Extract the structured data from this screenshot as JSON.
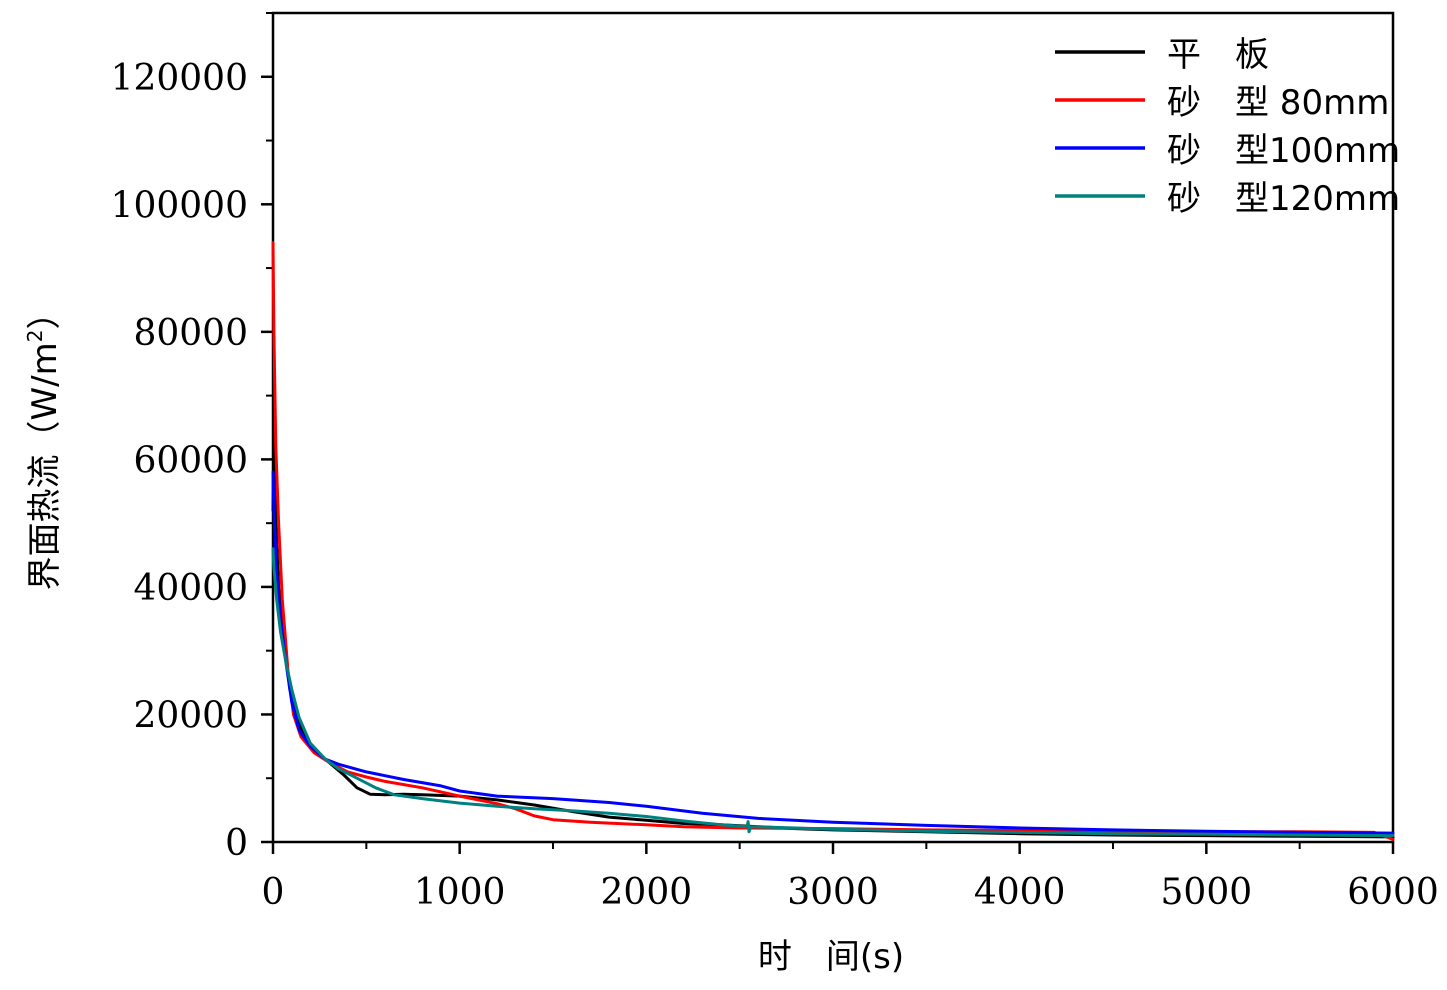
{
  "chart_data": {
    "type": "line",
    "xlabel": "时　间(s)",
    "ylabel": "界面热流（W/m",
    "ylabel_sup": "2",
    "ylabel_close": "）",
    "xlim": [
      0,
      6000
    ],
    "ylim": [
      0,
      130000
    ],
    "xticks": [
      0,
      1000,
      2000,
      3000,
      4000,
      5000,
      6000
    ],
    "xtick_labels": [
      "0",
      "1000",
      "2000",
      "3000",
      "4000",
      "5000",
      "6000"
    ],
    "yticks": [
      0,
      20000,
      40000,
      60000,
      80000,
      100000,
      120000
    ],
    "ytick_labels": [
      "0",
      "20000",
      "40000",
      "60000",
      "80000",
      "100000",
      "120000"
    ],
    "grid": false,
    "legend_position": "top-right",
    "series": [
      {
        "name": "平　板",
        "color": "#000000",
        "points": [
          [
            0,
            52000
          ],
          [
            5,
            65000
          ],
          [
            15,
            50000
          ],
          [
            30,
            40000
          ],
          [
            60,
            31000
          ],
          [
            90,
            24000
          ],
          [
            120,
            20000
          ],
          [
            160,
            17000
          ],
          [
            220,
            14500
          ],
          [
            300,
            12500
          ],
          [
            380,
            10500
          ],
          [
            450,
            8500
          ],
          [
            520,
            7500
          ],
          [
            600,
            7400
          ],
          [
            700,
            7500
          ],
          [
            800,
            7400
          ],
          [
            1000,
            7200
          ],
          [
            1200,
            6600
          ],
          [
            1400,
            5800
          ],
          [
            1600,
            4800
          ],
          [
            1800,
            3900
          ],
          [
            2000,
            3400
          ],
          [
            2200,
            2900
          ],
          [
            2400,
            2700
          ],
          [
            2600,
            2400
          ],
          [
            2800,
            2100
          ],
          [
            3000,
            1900
          ],
          [
            3500,
            1600
          ],
          [
            4000,
            1300
          ],
          [
            4500,
            1100
          ],
          [
            5000,
            1000
          ],
          [
            5500,
            900
          ],
          [
            6000,
            800
          ]
        ]
      },
      {
        "name": "砂　型 80mm",
        "color": "#ff0000",
        "points": [
          [
            0,
            94000
          ],
          [
            5,
            80000
          ],
          [
            15,
            62000
          ],
          [
            30,
            50000
          ],
          [
            50,
            38000
          ],
          [
            80,
            27000
          ],
          [
            110,
            20000
          ],
          [
            150,
            16500
          ],
          [
            220,
            14000
          ],
          [
            300,
            12500
          ],
          [
            400,
            11000
          ],
          [
            500,
            10200
          ],
          [
            600,
            9500
          ],
          [
            800,
            8500
          ],
          [
            1000,
            7200
          ],
          [
            1200,
            6000
          ],
          [
            1300,
            5200
          ],
          [
            1400,
            4100
          ],
          [
            1500,
            3500
          ],
          [
            1700,
            3100
          ],
          [
            2000,
            2700
          ],
          [
            2200,
            2400
          ],
          [
            2500,
            2200
          ],
          [
            3000,
            2100
          ],
          [
            3500,
            1900
          ],
          [
            4000,
            1800
          ],
          [
            4500,
            1700
          ],
          [
            5000,
            1600
          ],
          [
            5500,
            1600
          ],
          [
            5900,
            1500
          ],
          [
            6000,
            400
          ]
        ]
      },
      {
        "name": "砂　型100mm",
        "color": "#0000ff",
        "points": [
          [
            0,
            58000
          ],
          [
            5,
            52000
          ],
          [
            20,
            42000
          ],
          [
            40,
            35000
          ],
          [
            70,
            28000
          ],
          [
            100,
            22000
          ],
          [
            140,
            17500
          ],
          [
            200,
            15000
          ],
          [
            280,
            13000
          ],
          [
            350,
            12200
          ],
          [
            500,
            11000
          ],
          [
            700,
            9800
          ],
          [
            900,
            8800
          ],
          [
            1000,
            8000
          ],
          [
            1200,
            7200
          ],
          [
            1500,
            6800
          ],
          [
            1800,
            6200
          ],
          [
            2000,
            5600
          ],
          [
            2300,
            4500
          ],
          [
            2600,
            3700
          ],
          [
            3000,
            3100
          ],
          [
            3500,
            2600
          ],
          [
            4000,
            2200
          ],
          [
            4500,
            1900
          ],
          [
            5000,
            1700
          ],
          [
            5500,
            1500
          ],
          [
            6000,
            1400
          ]
        ]
      },
      {
        "name": "砂　型120mm",
        "color": "#008080",
        "points": [
          [
            0,
            46000
          ],
          [
            5,
            43000
          ],
          [
            20,
            38000
          ],
          [
            40,
            33000
          ],
          [
            70,
            28000
          ],
          [
            100,
            24000
          ],
          [
            140,
            19500
          ],
          [
            200,
            15500
          ],
          [
            280,
            13000
          ],
          [
            350,
            11500
          ],
          [
            450,
            10000
          ],
          [
            550,
            8500
          ],
          [
            650,
            7400
          ],
          [
            800,
            6800
          ],
          [
            1000,
            6100
          ],
          [
            1200,
            5600
          ],
          [
            1400,
            5200
          ],
          [
            1600,
            4900
          ],
          [
            1800,
            4500
          ],
          [
            2000,
            4000
          ],
          [
            2200,
            3300
          ],
          [
            2400,
            2700
          ],
          [
            2540,
            2400
          ],
          [
            2545,
            3200
          ],
          [
            2550,
            1600
          ],
          [
            2560,
            2400
          ],
          [
            2800,
            2200
          ],
          [
            3000,
            2000
          ],
          [
            3500,
            1700
          ],
          [
            4000,
            1500
          ],
          [
            4500,
            1300
          ],
          [
            5000,
            1200
          ],
          [
            5500,
            1100
          ],
          [
            6000,
            1000
          ]
        ]
      }
    ]
  }
}
